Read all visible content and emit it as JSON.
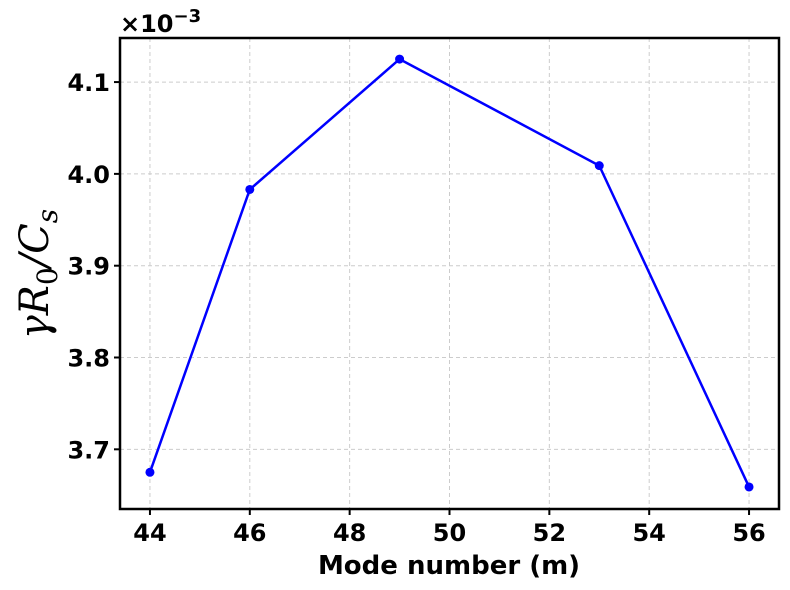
{
  "chart_data": {
    "type": "line",
    "title": "",
    "xlabel": "Mode number (m)",
    "ylabel_parts": {
      "main": "γR",
      "sub": "0",
      "mid": "/C",
      "sub2": "s"
    },
    "y_offset": {
      "base": "×10",
      "exp": "−3"
    },
    "x": [
      44,
      46,
      49,
      53,
      56
    ],
    "series": [
      {
        "values": [
          3.675,
          3.983,
          4.125,
          4.009,
          3.659
        ],
        "color": "#0000ff",
        "marker": "circle"
      }
    ],
    "xlim": [
      43.4,
      56.6
    ],
    "ylim": [
      3.635,
      4.148
    ],
    "xticks": [
      44,
      46,
      48,
      50,
      52,
      54,
      56
    ],
    "xtick_labels": [
      "44",
      "46",
      "48",
      "50",
      "52",
      "54",
      "56"
    ],
    "yticks": [
      3.7,
      3.8,
      3.9,
      4.0,
      4.1
    ],
    "ytick_labels": [
      "3.7",
      "3.8",
      "3.9",
      "4.0",
      "4.1"
    ],
    "grid": true,
    "legend": "none"
  }
}
